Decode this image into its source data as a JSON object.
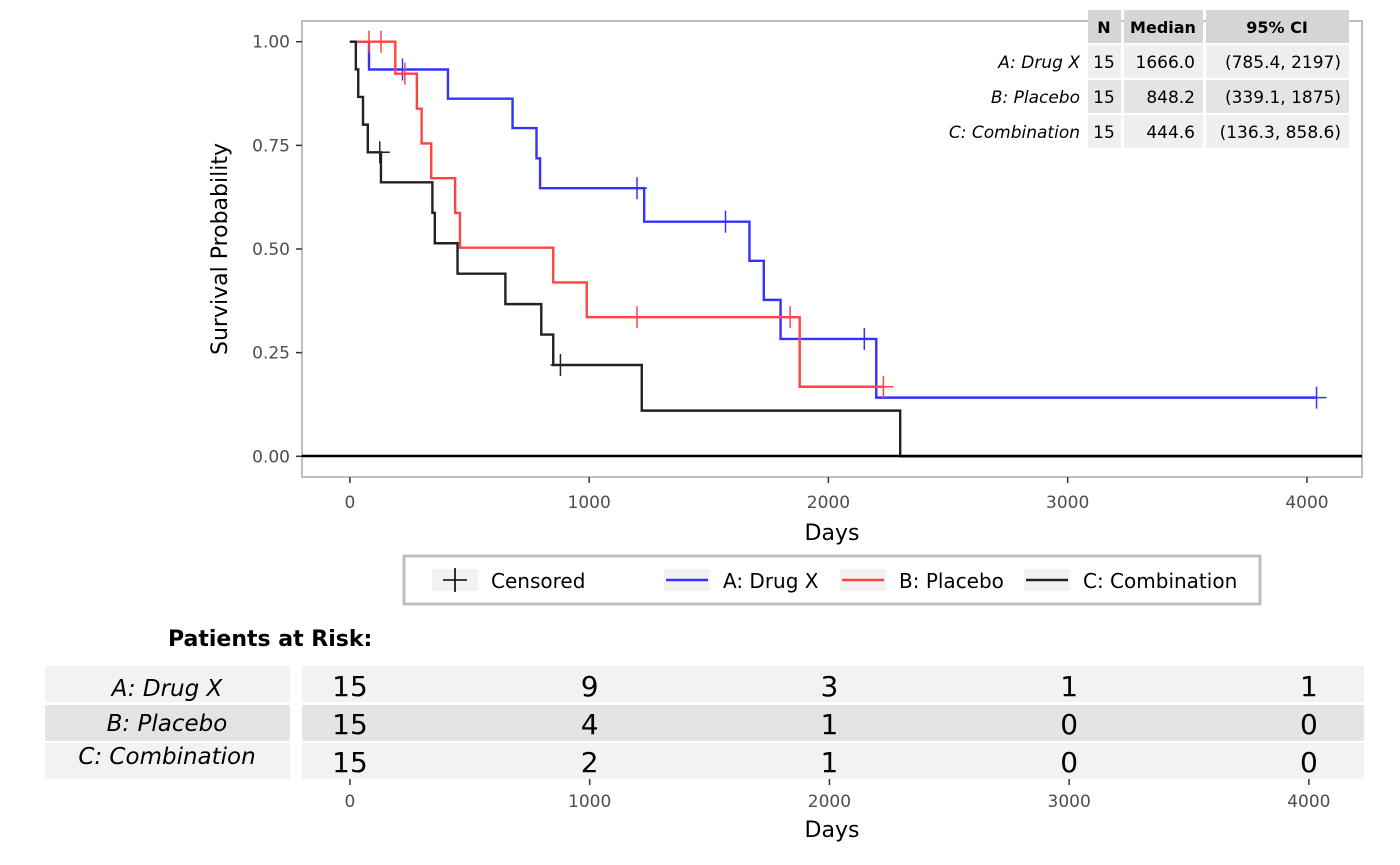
{
  "chart_data": {
    "type": "line",
    "subtype": "kaplan-meier",
    "xlabel": "Days",
    "ylabel": "Survival Probability",
    "xlim": [
      -200,
      4230
    ],
    "ylim": [
      -0.05,
      1.05
    ],
    "x_ticks": [
      0,
      1000,
      2000,
      3000,
      4000
    ],
    "x_tick_labels": [
      "0",
      "1000",
      "2000",
      "3000",
      "4000"
    ],
    "y_ticks": [
      0,
      0.25,
      0.5,
      0.75,
      1
    ],
    "y_tick_labels": [
      "0.00",
      "0.25",
      "0.50",
      "0.75",
      "1.00"
    ],
    "grid": false,
    "series": [
      {
        "name": "A: Drug X",
        "color": "#3333ff",
        "steps": [
          [
            0,
            1.0
          ],
          [
            80,
            0.933
          ],
          [
            410,
            0.8625
          ],
          [
            680,
            0.7917
          ],
          [
            780,
            0.7188
          ],
          [
            795,
            0.6468
          ],
          [
            1230,
            0.5659
          ],
          [
            1670,
            0.4716
          ],
          [
            1730,
            0.3773
          ],
          [
            1800,
            0.283
          ],
          [
            2200,
            0.1415
          ],
          [
            4040,
            0.1415
          ]
        ],
        "censored": [
          [
            220,
            0.933
          ],
          [
            1200,
            0.6468
          ],
          [
            1570,
            0.5659
          ],
          [
            2150,
            0.283
          ],
          [
            4040,
            0.1415
          ]
        ]
      },
      {
        "name": "B: Placebo",
        "color": "#ff4444",
        "steps": [
          [
            0,
            1.0
          ],
          [
            190,
            0.923
          ],
          [
            280,
            0.8385
          ],
          [
            300,
            0.7546
          ],
          [
            340,
            0.6708
          ],
          [
            440,
            0.587
          ],
          [
            460,
            0.5032
          ],
          [
            850,
            0.4193
          ],
          [
            990,
            0.3355
          ],
          [
            1880,
            0.1677
          ],
          [
            2230,
            0.1677
          ]
        ],
        "censored": [
          [
            80,
            1.0
          ],
          [
            130,
            1.0
          ],
          [
            230,
            0.923
          ],
          [
            1200,
            0.3355
          ],
          [
            1840,
            0.3355
          ],
          [
            2230,
            0.1677
          ]
        ]
      },
      {
        "name": "C: Combination",
        "color": "#222222",
        "steps": [
          [
            0,
            1.0
          ],
          [
            25,
            0.9333
          ],
          [
            35,
            0.8667
          ],
          [
            55,
            0.8
          ],
          [
            75,
            0.7333
          ],
          [
            130,
            0.6609
          ],
          [
            345,
            0.5874
          ],
          [
            355,
            0.5139
          ],
          [
            450,
            0.4405
          ],
          [
            650,
            0.367
          ],
          [
            800,
            0.2936
          ],
          [
            850,
            0.2202
          ],
          [
            1220,
            0.1101
          ],
          [
            2300,
            0.0
          ],
          [
            4230,
            0.0
          ]
        ],
        "censored": [
          [
            125,
            0.7333
          ],
          [
            880,
            0.2202
          ]
        ]
      }
    ],
    "legend": {
      "placement": "bottom",
      "censored_label": "Censored",
      "entries": [
        "A: Drug X",
        "B: Placebo",
        "C: Combination"
      ]
    },
    "summary_table": {
      "placement": "top-right",
      "headers": [
        "N",
        "Median",
        "95% CI"
      ],
      "rows": [
        {
          "label": "A: Drug X",
          "n": "15",
          "median": "1666.0",
          "ci": "(785.4, 2197)"
        },
        {
          "label": "B: Placebo",
          "n": "15",
          "median": "848.2",
          "ci": "(339.1, 1875)"
        },
        {
          "label": "C: Combination",
          "n": "15",
          "median": "444.6",
          "ci": "(136.3, 858.6)"
        }
      ]
    },
    "risk_table": {
      "title": "Patients at Risk:",
      "xlabel": "Days",
      "times": [
        0,
        1000,
        2000,
        3000,
        4000
      ],
      "time_labels": [
        "0",
        "1000",
        "2000",
        "3000",
        "4000"
      ],
      "rows": [
        {
          "label": "A: Drug X",
          "counts": [
            "15",
            "9",
            "3",
            "1",
            "1"
          ]
        },
        {
          "label": "B: Placebo",
          "counts": [
            "15",
            "4",
            "1",
            "0",
            "0"
          ]
        },
        {
          "label": "C: Combination",
          "counts": [
            "15",
            "2",
            "1",
            "0",
            "0"
          ]
        }
      ]
    }
  }
}
